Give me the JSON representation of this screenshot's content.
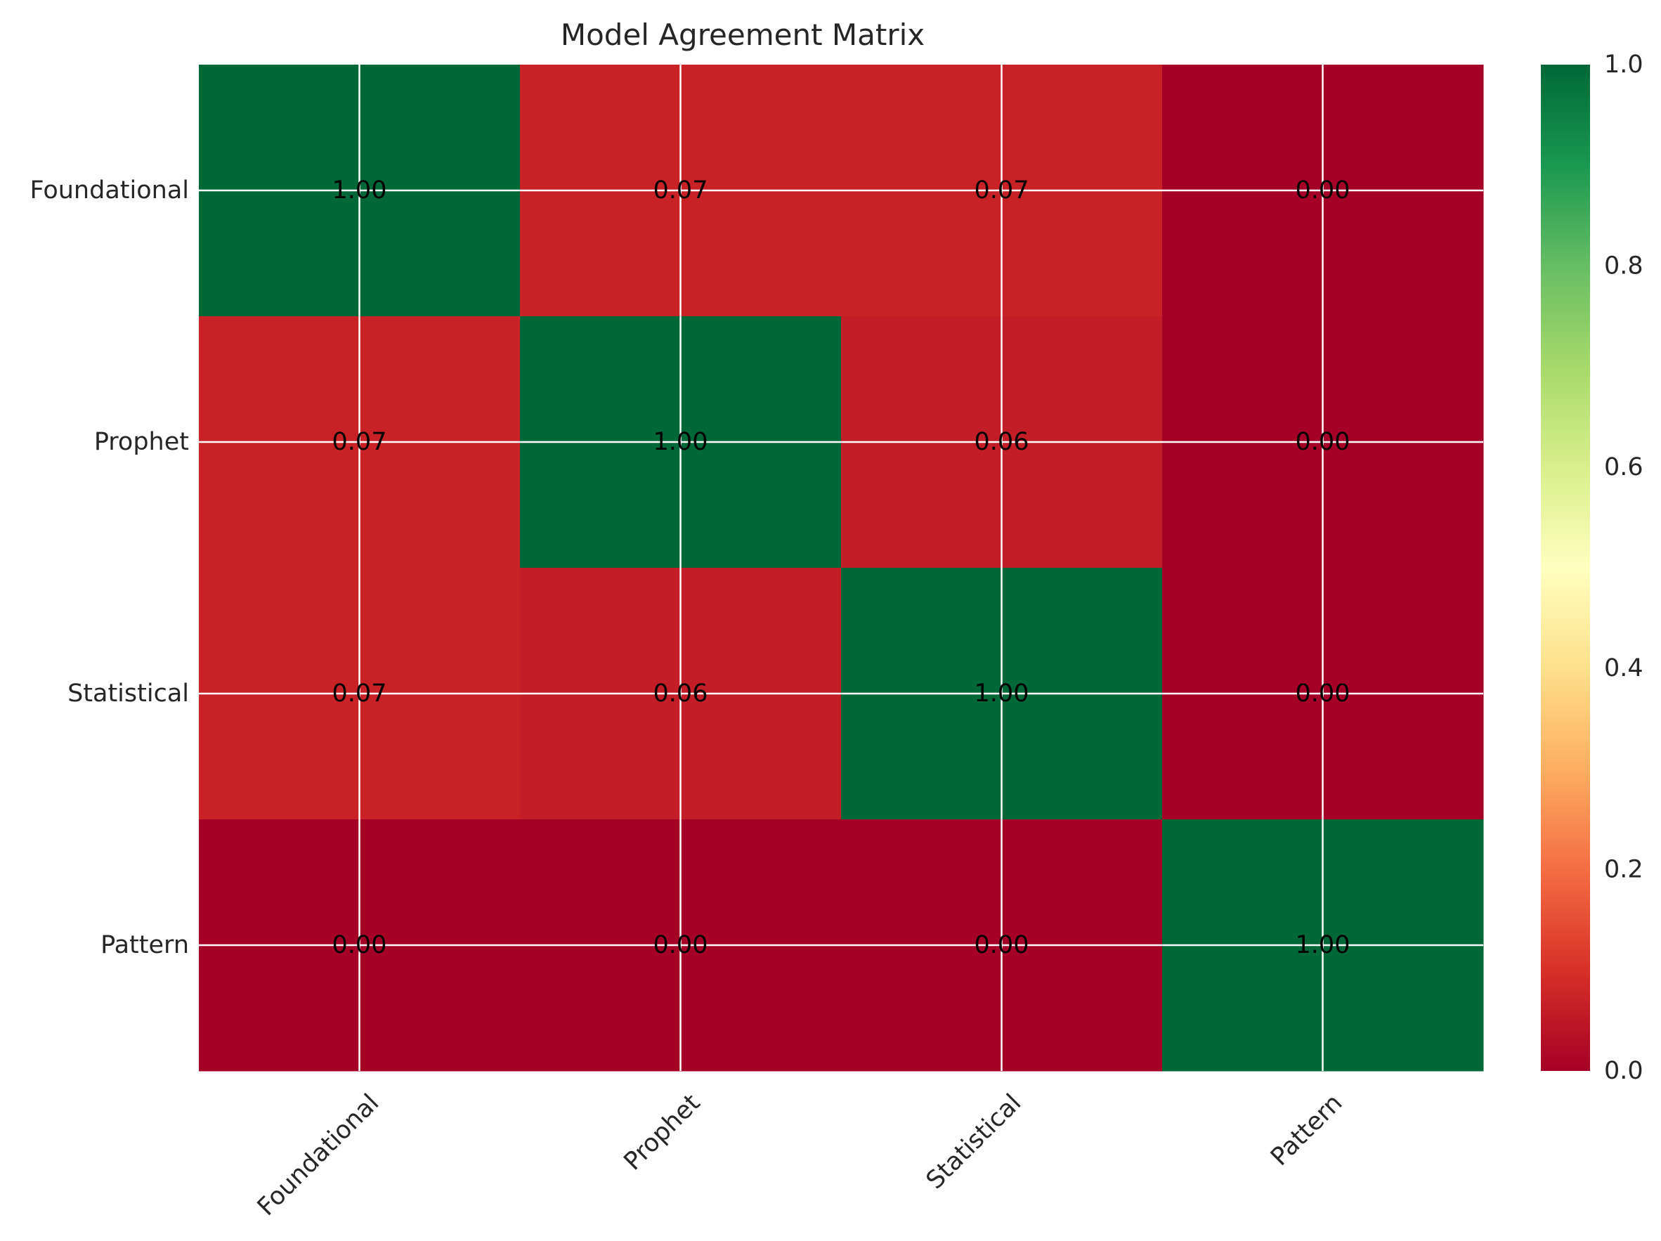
{
  "chart_data": {
    "type": "heatmap",
    "title": "Model Agreement Matrix",
    "row_labels": [
      "Foundational",
      "Prophet",
      "Statistical",
      "Pattern"
    ],
    "col_labels": [
      "Foundational",
      "Prophet",
      "Statistical",
      "Pattern"
    ],
    "values": [
      [
        1.0,
        0.07,
        0.07,
        0.0
      ],
      [
        0.07,
        1.0,
        0.06,
        0.0
      ],
      [
        0.07,
        0.06,
        1.0,
        0.0
      ],
      [
        0.0,
        0.0,
        0.0,
        1.0
      ]
    ],
    "cell_labels": [
      [
        "1.00",
        "0.07",
        "0.07",
        "0.00"
      ],
      [
        "0.07",
        "1.00",
        "0.06",
        "0.00"
      ],
      [
        "0.07",
        "0.06",
        "1.00",
        "0.00"
      ],
      [
        "0.00",
        "0.00",
        "0.00",
        "1.00"
      ]
    ],
    "colormap": "RdYlGn",
    "colorbar": {
      "range": [
        0.0,
        1.0
      ],
      "ticks": [
        "0.0",
        "0.2",
        "0.4",
        "0.6",
        "0.8",
        "1.0"
      ]
    },
    "grid": true,
    "xtick_rotation": 45,
    "colors": {
      "grid": "#ffffff",
      "text": "#000000",
      "axis_text": "#262626"
    }
  }
}
